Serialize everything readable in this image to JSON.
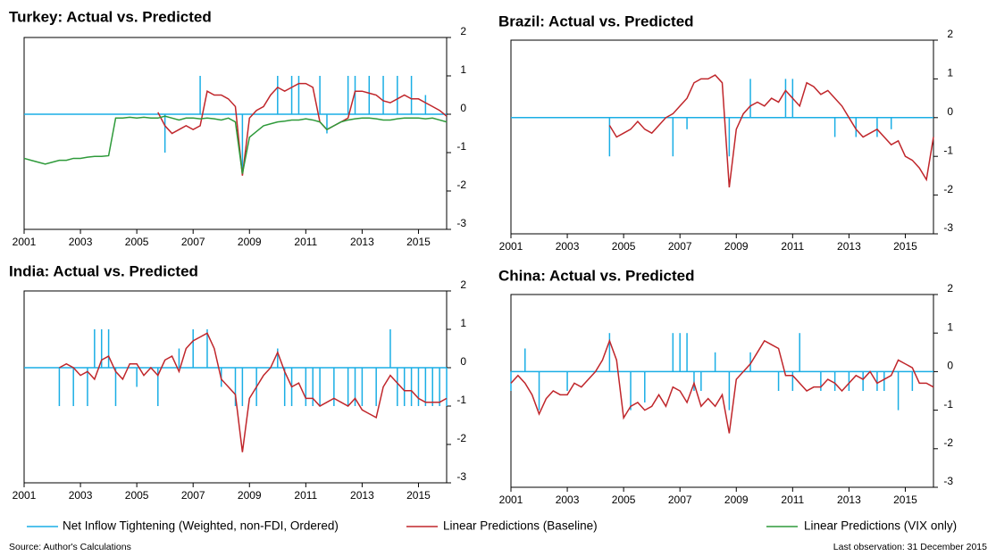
{
  "chart_data": [
    {
      "type": "line",
      "title": "Turkey: Actual vs. Predicted",
      "x": [
        2001,
        2001.25,
        2001.5,
        2001.75,
        2002,
        2002.25,
        2002.5,
        2002.75,
        2003,
        2003.25,
        2003.5,
        2003.75,
        2004,
        2004.25,
        2004.5,
        2004.75,
        2005,
        2005.25,
        2005.5,
        2005.75,
        2006,
        2006.25,
        2006.5,
        2006.75,
        2007,
        2007.25,
        2007.5,
        2007.75,
        2008,
        2008.25,
        2008.5,
        2008.75,
        2009,
        2009.25,
        2009.5,
        2009.75,
        2010,
        2010.25,
        2010.5,
        2010.75,
        2011,
        2011.25,
        2011.5,
        2011.75,
        2012,
        2012.25,
        2012.5,
        2012.75,
        2013,
        2013.25,
        2013.5,
        2013.75,
        2014,
        2014.25,
        2014.5,
        2014.75,
        2015,
        2015.25,
        2015.5,
        2015.75,
        2016
      ],
      "xlim": [
        2001,
        2016
      ],
      "xticks": [
        2001,
        2003,
        2005,
        2007,
        2009,
        2011,
        2013,
        2015
      ],
      "ylim": [
        -3,
        2
      ],
      "yticks": [
        -3,
        -2,
        -1,
        0,
        1,
        2
      ],
      "series": [
        {
          "name": "Net Inflow Tightening (Weighted, non-FDI, Ordered)",
          "color": "#1aaee5",
          "style": "spikes",
          "values": [
            0,
            0,
            0,
            0,
            0,
            0,
            0,
            0,
            0,
            0,
            0,
            0,
            0,
            0,
            0,
            0,
            0,
            0,
            0,
            0,
            -1,
            0,
            0,
            0,
            0,
            1,
            0,
            0,
            0,
            0,
            0,
            -1.5,
            0,
            0,
            0,
            0,
            1,
            0,
            1,
            1,
            0,
            0,
            1,
            -0.5,
            0,
            0,
            1,
            1,
            0,
            1,
            0,
            1,
            0,
            1,
            0,
            1,
            0,
            0.5,
            0,
            0,
            0
          ]
        },
        {
          "name": "Linear Predictions (Baseline)",
          "color": "#c0262b",
          "values": [
            null,
            null,
            null,
            null,
            null,
            null,
            null,
            null,
            null,
            null,
            null,
            null,
            null,
            null,
            null,
            null,
            null,
            null,
            null,
            0.05,
            -0.3,
            -0.5,
            -0.4,
            -0.3,
            -0.4,
            -0.3,
            0.6,
            0.5,
            0.5,
            0.4,
            0.2,
            -1.6,
            -0.1,
            0.1,
            0.2,
            0.5,
            0.7,
            0.6,
            0.7,
            0.8,
            0.8,
            0.7,
            -0.2,
            -0.4,
            -0.3,
            -0.2,
            -0.1,
            0.6,
            0.6,
            0.55,
            0.5,
            0.35,
            0.3,
            0.4,
            0.5,
            0.4,
            0.4,
            0.3,
            0.2,
            0.1,
            -0.05
          ]
        },
        {
          "name": "Linear Predictions (VIX only)",
          "color": "#2e9a3a",
          "values": [
            -1.15,
            -1.2,
            -1.25,
            -1.3,
            -1.25,
            -1.2,
            -1.2,
            -1.15,
            -1.15,
            -1.12,
            -1.1,
            -1.1,
            -1.08,
            -0.1,
            -0.1,
            -0.08,
            -0.1,
            -0.08,
            -0.1,
            -0.1,
            -0.05,
            -0.1,
            -0.15,
            -0.1,
            -0.1,
            -0.12,
            -0.1,
            -0.12,
            -0.15,
            -0.1,
            -0.2,
            -1.55,
            -0.6,
            -0.45,
            -0.3,
            -0.25,
            -0.2,
            -0.18,
            -0.15,
            -0.15,
            -0.12,
            -0.15,
            -0.2,
            -0.4,
            -0.3,
            -0.2,
            -0.15,
            -0.12,
            -0.1,
            -0.1,
            -0.12,
            -0.15,
            -0.15,
            -0.12,
            -0.1,
            -0.1,
            -0.1,
            -0.12,
            -0.1,
            -0.15,
            -0.2
          ]
        }
      ]
    },
    {
      "type": "line",
      "title": "Brazil: Actual vs. Predicted",
      "x": [
        2001,
        2001.25,
        2001.5,
        2001.75,
        2002,
        2002.25,
        2002.5,
        2002.75,
        2003,
        2003.25,
        2003.5,
        2003.75,
        2004,
        2004.25,
        2004.5,
        2004.75,
        2005,
        2005.25,
        2005.5,
        2005.75,
        2006,
        2006.25,
        2006.5,
        2006.75,
        2007,
        2007.25,
        2007.5,
        2007.75,
        2008,
        2008.25,
        2008.5,
        2008.75,
        2009,
        2009.25,
        2009.5,
        2009.75,
        2010,
        2010.25,
        2010.5,
        2010.75,
        2011,
        2011.25,
        2011.5,
        2011.75,
        2012,
        2012.25,
        2012.5,
        2012.75,
        2013,
        2013.25,
        2013.5,
        2013.75,
        2014,
        2014.25,
        2014.5,
        2014.75,
        2015,
        2015.25,
        2015.5,
        2015.75,
        2016
      ],
      "xlim": [
        2001,
        2016
      ],
      "xticks": [
        2001,
        2003,
        2005,
        2007,
        2009,
        2011,
        2013,
        2015
      ],
      "ylim": [
        -3,
        2
      ],
      "yticks": [
        -3,
        -2,
        -1,
        0,
        1,
        2
      ],
      "series": [
        {
          "name": "Net Inflow Tightening (Weighted, non-FDI, Ordered)",
          "color": "#1aaee5",
          "style": "spikes",
          "values": [
            0,
            0,
            0,
            0,
            0,
            0,
            0,
            0,
            0,
            0,
            0,
            0,
            0,
            0,
            -1,
            0,
            0,
            0,
            0,
            0,
            0,
            0,
            0,
            -1,
            0,
            -0.3,
            0,
            0,
            0,
            0,
            0,
            -1,
            0,
            0,
            1,
            0,
            0,
            0,
            0,
            1,
            1,
            0,
            0,
            0,
            0,
            0,
            -0.5,
            0,
            0,
            -0.5,
            0,
            0,
            -0.5,
            0,
            -0.3,
            0,
            0,
            0,
            0,
            0,
            0
          ]
        },
        {
          "name": "Linear Predictions (Baseline)",
          "color": "#c0262b",
          "values": [
            null,
            null,
            null,
            null,
            null,
            null,
            null,
            null,
            null,
            null,
            null,
            null,
            null,
            null,
            -0.2,
            -0.5,
            -0.4,
            -0.3,
            -0.1,
            -0.3,
            -0.4,
            -0.2,
            0,
            0.1,
            0.3,
            0.5,
            0.9,
            1.0,
            1.0,
            1.1,
            0.9,
            -1.8,
            -0.3,
            0.1,
            0.3,
            0.4,
            0.3,
            0.5,
            0.4,
            0.7,
            0.5,
            0.3,
            0.9,
            0.8,
            0.6,
            0.7,
            0.5,
            0.3,
            0,
            -0.3,
            -0.5,
            -0.4,
            -0.3,
            -0.5,
            -0.7,
            -0.6,
            -1.0,
            -1.1,
            -1.3,
            -1.6,
            -0.5
          ]
        }
      ]
    },
    {
      "type": "line",
      "title": "India: Actual vs. Predicted",
      "x": [
        2001,
        2001.25,
        2001.5,
        2001.75,
        2002,
        2002.25,
        2002.5,
        2002.75,
        2003,
        2003.25,
        2003.5,
        2003.75,
        2004,
        2004.25,
        2004.5,
        2004.75,
        2005,
        2005.25,
        2005.5,
        2005.75,
        2006,
        2006.25,
        2006.5,
        2006.75,
        2007,
        2007.25,
        2007.5,
        2007.75,
        2008,
        2008.25,
        2008.5,
        2008.75,
        2009,
        2009.25,
        2009.5,
        2009.75,
        2010,
        2010.25,
        2010.5,
        2010.75,
        2011,
        2011.25,
        2011.5,
        2011.75,
        2012,
        2012.25,
        2012.5,
        2012.75,
        2013,
        2013.25,
        2013.5,
        2013.75,
        2014,
        2014.25,
        2014.5,
        2014.75,
        2015,
        2015.25,
        2015.5,
        2015.75,
        2016
      ],
      "xlim": [
        2001,
        2016
      ],
      "xticks": [
        2001,
        2003,
        2005,
        2007,
        2009,
        2011,
        2013,
        2015
      ],
      "ylim": [
        -3,
        2
      ],
      "yticks": [
        -3,
        -2,
        -1,
        0,
        1,
        2
      ],
      "series": [
        {
          "name": "Net Inflow Tightening (Weighted, non-FDI, Ordered)",
          "color": "#1aaee5",
          "style": "spikes",
          "values": [
            0,
            0,
            0,
            0,
            0,
            -1,
            0,
            -1,
            0,
            -1,
            1,
            1,
            1,
            -1,
            0,
            0,
            -0.5,
            0,
            0,
            -1,
            0,
            0,
            0.5,
            0,
            1,
            0,
            1,
            0,
            -0.5,
            0,
            -1,
            -1,
            0,
            -1,
            0,
            0,
            0.5,
            -1,
            -1,
            0,
            -1,
            -1,
            -1,
            0,
            -1,
            0,
            -1,
            -1,
            -1,
            0,
            -1,
            0,
            1,
            -1,
            -1,
            -1,
            -1,
            -1,
            -1,
            -1,
            -1
          ]
        },
        {
          "name": "Linear Predictions (Baseline)",
          "color": "#c0262b",
          "values": [
            null,
            null,
            null,
            null,
            null,
            0,
            0.1,
            0,
            -0.2,
            -0.1,
            -0.3,
            0.2,
            0.3,
            -0.1,
            -0.3,
            0.1,
            0.1,
            -0.2,
            0,
            -0.2,
            0.2,
            0.3,
            -0.1,
            0.5,
            0.7,
            0.8,
            0.9,
            0.5,
            -0.3,
            -0.5,
            -0.7,
            -2.2,
            -0.8,
            -0.5,
            -0.2,
            0,
            0.4,
            -0.1,
            -0.5,
            -0.4,
            -0.8,
            -0.8,
            -1.0,
            -0.9,
            -0.8,
            -0.9,
            -1.0,
            -0.8,
            -1.1,
            -1.2,
            -1.3,
            -0.5,
            -0.2,
            -0.4,
            -0.6,
            -0.6,
            -0.8,
            -0.9,
            -0.9,
            -0.9,
            -0.8
          ]
        }
      ]
    },
    {
      "type": "line",
      "title": "China: Actual vs. Predicted",
      "x": [
        2001,
        2001.25,
        2001.5,
        2001.75,
        2002,
        2002.25,
        2002.5,
        2002.75,
        2003,
        2003.25,
        2003.5,
        2003.75,
        2004,
        2004.25,
        2004.5,
        2004.75,
        2005,
        2005.25,
        2005.5,
        2005.75,
        2006,
        2006.25,
        2006.5,
        2006.75,
        2007,
        2007.25,
        2007.5,
        2007.75,
        2008,
        2008.25,
        2008.5,
        2008.75,
        2009,
        2009.25,
        2009.5,
        2009.75,
        2010,
        2010.25,
        2010.5,
        2010.75,
        2011,
        2011.25,
        2011.5,
        2011.75,
        2012,
        2012.25,
        2012.5,
        2012.75,
        2013,
        2013.25,
        2013.5,
        2013.75,
        2014,
        2014.25,
        2014.5,
        2014.75,
        2015,
        2015.25,
        2015.5,
        2015.75,
        2016
      ],
      "xlim": [
        2001,
        2016
      ],
      "xticks": [
        2001,
        2003,
        2005,
        2007,
        2009,
        2011,
        2013,
        2015
      ],
      "ylim": [
        -3,
        2
      ],
      "yticks": [
        -3,
        -2,
        -1,
        0,
        1,
        2
      ],
      "series": [
        {
          "name": "Net Inflow Tightening (Weighted, non-FDI, Ordered)",
          "color": "#1aaee5",
          "style": "spikes",
          "values": [
            -0.5,
            0,
            0.6,
            0,
            -1,
            0,
            0,
            0,
            -0.5,
            0,
            0,
            0,
            0,
            0,
            1,
            0,
            0,
            -1,
            0,
            -0.8,
            0,
            0,
            0,
            1,
            1,
            1,
            -0.5,
            -0.5,
            0,
            0.5,
            0,
            -1,
            0,
            0,
            0.5,
            0,
            0,
            0,
            -0.5,
            0,
            -0.5,
            1,
            0,
            0,
            -0.5,
            0,
            -0.5,
            0,
            -0.5,
            0,
            -0.5,
            0,
            -0.5,
            -0.5,
            0,
            -1,
            0,
            -0.5,
            0,
            0,
            0
          ]
        },
        {
          "name": "Linear Predictions (Baseline)",
          "color": "#c0262b",
          "values": [
            -0.3,
            -0.1,
            -0.3,
            -0.6,
            -1.1,
            -0.7,
            -0.5,
            -0.6,
            -0.6,
            -0.3,
            -0.4,
            -0.2,
            0,
            0.3,
            0.8,
            0.3,
            -1.2,
            -0.9,
            -0.8,
            -1.0,
            -0.9,
            -0.6,
            -0.9,
            -0.4,
            -0.5,
            -0.8,
            -0.3,
            -0.9,
            -0.7,
            -0.9,
            -0.6,
            -1.6,
            -0.2,
            0,
            0.2,
            0.5,
            0.8,
            0.7,
            0.6,
            -0.1,
            -0.1,
            -0.3,
            -0.5,
            -0.4,
            -0.4,
            -0.2,
            -0.3,
            -0.5,
            -0.3,
            -0.1,
            -0.2,
            0,
            -0.3,
            -0.2,
            -0.1,
            0.3,
            0.2,
            0.1,
            -0.3,
            -0.3,
            -0.4
          ]
        }
      ]
    }
  ],
  "notes": {
    "source": "Source: Author's Calculations",
    "last_observation": "Last observation:  31 December  2015"
  }
}
